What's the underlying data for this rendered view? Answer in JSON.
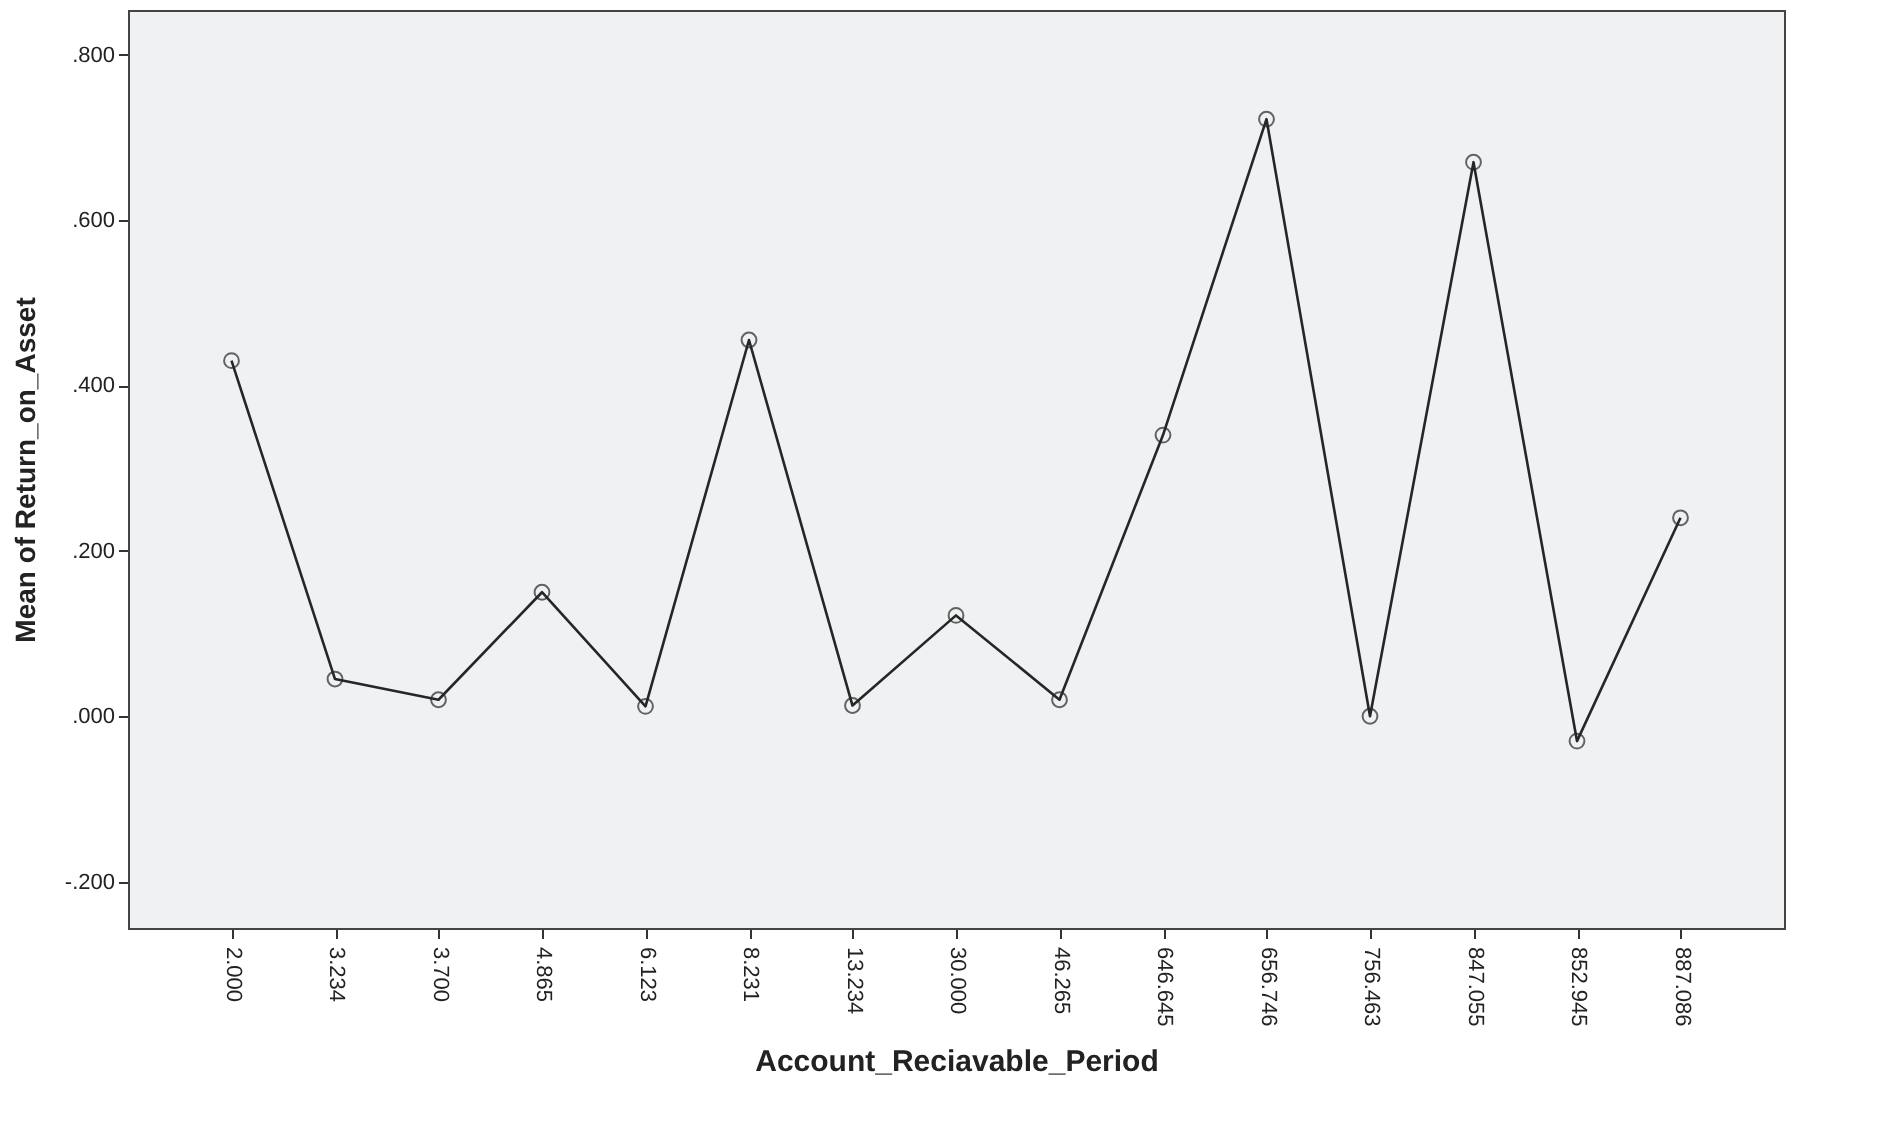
{
  "chart_data": {
    "type": "line",
    "xlabel": "Account_Reciavable_Period",
    "ylabel": "Mean of Return_on_Asset",
    "categories": [
      "2.000",
      "3.234",
      "3.700",
      "4.865",
      "6.123",
      "8.231",
      "13.234",
      "30.000",
      "46.265",
      "646.645",
      "656.746",
      "756.463",
      "847.055",
      "852.945",
      "887.086"
    ],
    "series": [
      {
        "color": "#262626",
        "values": [
          0.43,
          0.045,
          0.02,
          0.15,
          0.012,
          0.455,
          0.013,
          0.122,
          0.02,
          0.34,
          0.722,
          0.0,
          0.67,
          -0.03,
          0.24
        ]
      }
    ],
    "ylim": [
      -0.256,
      0.854
    ],
    "yticks": [
      {
        "value": -0.2,
        "label": "-.200"
      },
      {
        "value": 0.0,
        "label": ".000"
      },
      {
        "value": 0.2,
        "label": ".200"
      },
      {
        "value": 0.4,
        "label": ".400"
      },
      {
        "value": 0.6,
        "label": ".600"
      },
      {
        "value": 0.8,
        "label": ".800"
      }
    ],
    "marker": "circle",
    "line_style": "solid",
    "grid": false,
    "legend": false
  }
}
